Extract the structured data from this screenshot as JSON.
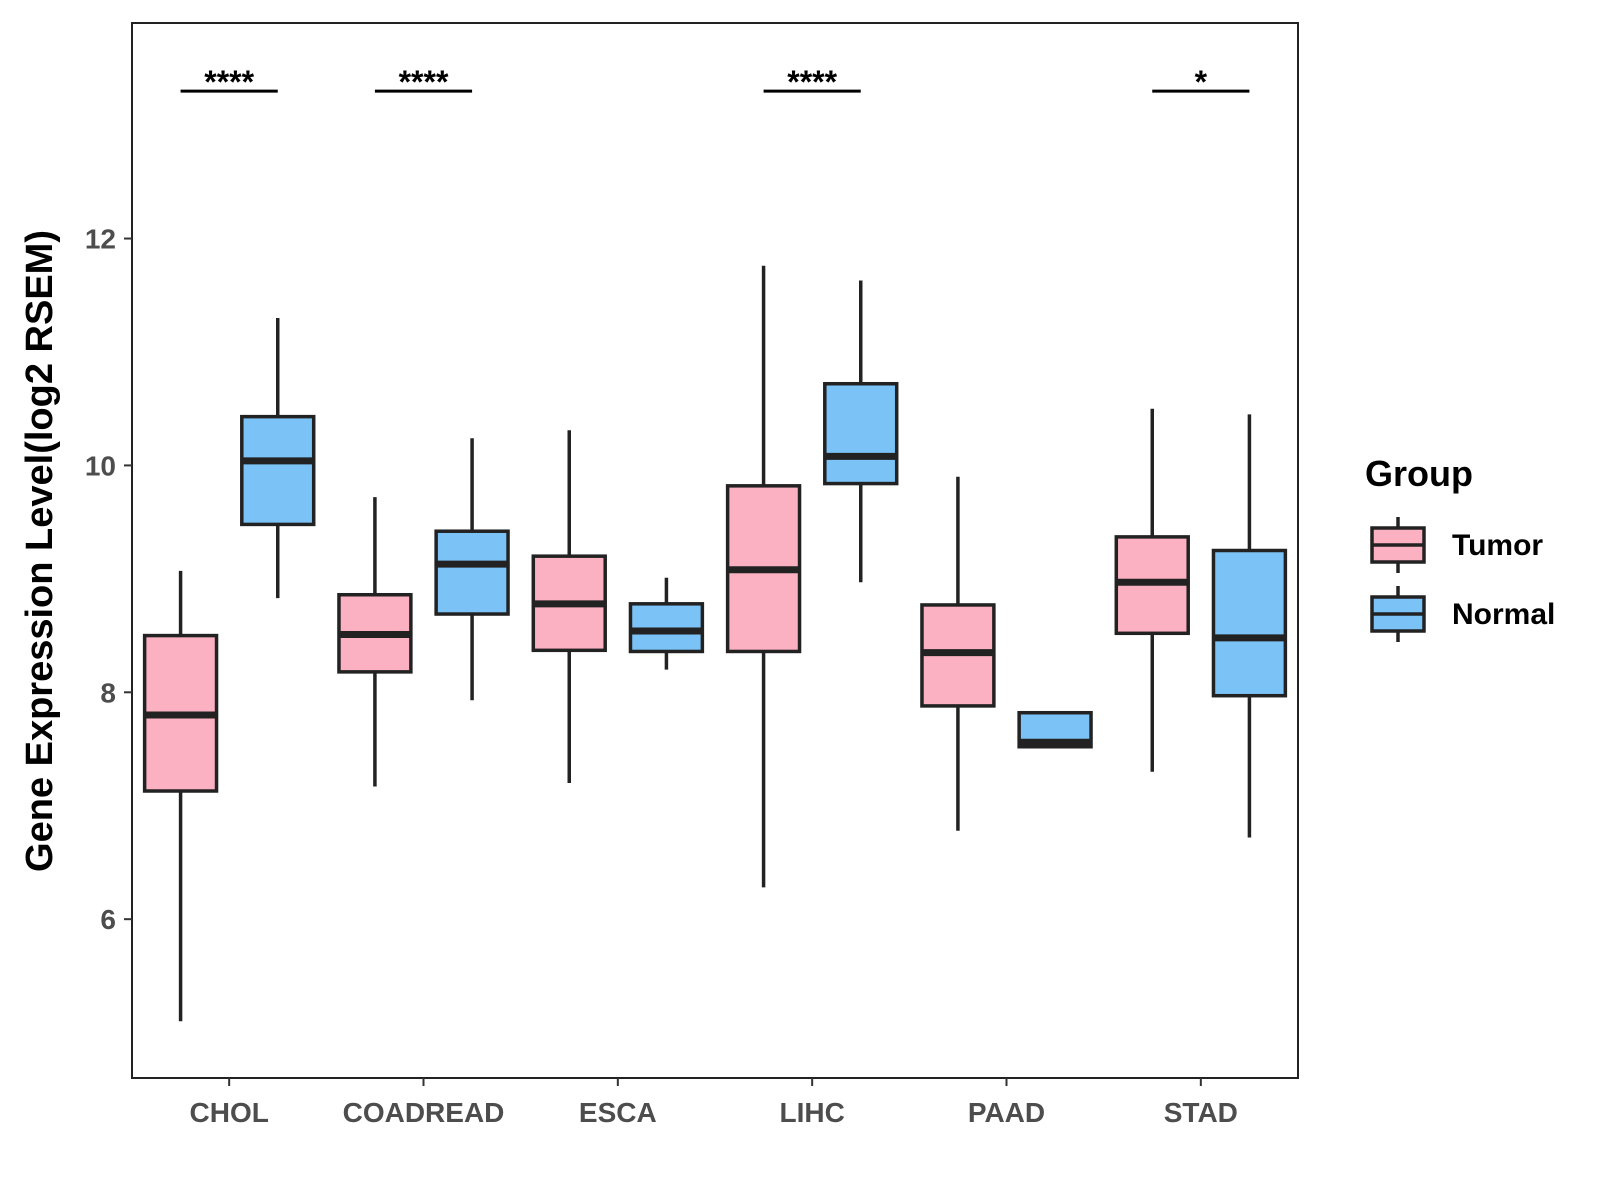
{
  "chart_data": {
    "type": "boxplot",
    "title": "",
    "xlabel": "",
    "ylabel": "Gene Expression Level(log2 RSEM)",
    "ylim": [
      4.6,
      13.9
    ],
    "yticks": [
      6,
      8,
      10,
      12
    ],
    "ytick_labels": [
      "6",
      "8",
      "10",
      "12"
    ],
    "categories": [
      "CHOL",
      "COADREAD",
      "ESCA",
      "LIHC",
      "PAAD",
      "STAD"
    ],
    "legend": {
      "title": "Group",
      "position": "right",
      "entries": [
        {
          "name": "Tumor",
          "color": "#fbb1c2"
        },
        {
          "name": "Normal",
          "color": "#7bc2f7"
        }
      ]
    },
    "series": [
      {
        "name": "Tumor",
        "color": "#fbb1c2",
        "boxes": [
          {
            "category": "CHOL",
            "lower_whisker": 5.1,
            "q1": 7.13,
            "median": 7.8,
            "q3": 8.5,
            "upper_whisker": 9.07
          },
          {
            "category": "COADREAD",
            "lower_whisker": 7.17,
            "q1": 8.18,
            "median": 8.51,
            "q3": 8.86,
            "upper_whisker": 9.72
          },
          {
            "category": "ESCA",
            "lower_whisker": 7.2,
            "q1": 8.37,
            "median": 8.78,
            "q3": 9.2,
            "upper_whisker": 10.31
          },
          {
            "category": "LIHC",
            "lower_whisker": 6.28,
            "q1": 8.36,
            "median": 9.08,
            "q3": 9.82,
            "upper_whisker": 11.76
          },
          {
            "category": "PAAD",
            "lower_whisker": 6.78,
            "q1": 7.88,
            "median": 8.35,
            "q3": 8.77,
            "upper_whisker": 9.9
          },
          {
            "category": "STAD",
            "lower_whisker": 7.3,
            "q1": 8.52,
            "median": 8.97,
            "q3": 9.37,
            "upper_whisker": 10.5
          }
        ]
      },
      {
        "name": "Normal",
        "color": "#7bc2f7",
        "boxes": [
          {
            "category": "CHOL",
            "lower_whisker": 8.83,
            "q1": 9.48,
            "median": 10.04,
            "q3": 10.43,
            "upper_whisker": 11.3
          },
          {
            "category": "COADREAD",
            "lower_whisker": 7.93,
            "q1": 8.69,
            "median": 9.13,
            "q3": 9.42,
            "upper_whisker": 10.24
          },
          {
            "category": "ESCA",
            "lower_whisker": 8.2,
            "q1": 8.36,
            "median": 8.54,
            "q3": 8.78,
            "upper_whisker": 9.01
          },
          {
            "category": "LIHC",
            "lower_whisker": 8.97,
            "q1": 9.84,
            "median": 10.08,
            "q3": 10.72,
            "upper_whisker": 11.63
          },
          {
            "category": "PAAD",
            "lower_whisker": 7.52,
            "q1": 7.52,
            "median": 7.56,
            "q3": 7.82,
            "upper_whisker": 7.82
          },
          {
            "category": "STAD",
            "lower_whisker": 6.72,
            "q1": 7.97,
            "median": 8.48,
            "q3": 9.25,
            "upper_whisker": 10.45
          }
        ]
      }
    ],
    "significance": [
      {
        "category": "CHOL",
        "label": "****",
        "y": 13.3
      },
      {
        "category": "COADREAD",
        "label": "****",
        "y": 13.3
      },
      {
        "category": "LIHC",
        "label": "****",
        "y": 13.3
      },
      {
        "category": "STAD",
        "label": "*",
        "y": 13.3
      }
    ],
    "grid": false
  }
}
